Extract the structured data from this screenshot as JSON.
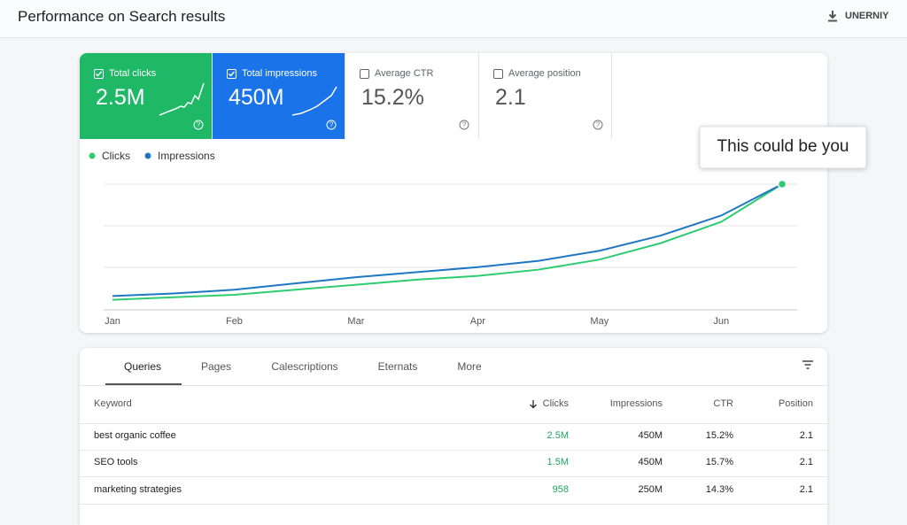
{
  "header": {
    "title": "Performance on Search results",
    "action": "UNERNIY"
  },
  "metrics": [
    {
      "label": "Total clicks",
      "value": "2.5M",
      "checked": true,
      "color": "#1fb866"
    },
    {
      "label": "Total impressions",
      "value": "450M",
      "checked": true,
      "color": "#1a73e8"
    },
    {
      "label": "Average CTR",
      "value": "15.2%",
      "checked": false
    },
    {
      "label": "Average position",
      "value": "2.1",
      "checked": false
    }
  ],
  "chart_data": {
    "type": "line",
    "categories": [
      "Jan",
      null,
      "Feb",
      null,
      "Mar",
      null,
      "Apr",
      null,
      "May",
      null,
      "Jun",
      null
    ],
    "series": [
      {
        "name": "Clicks",
        "color": "#2ecc71",
        "values": [
          8,
          10,
          12,
          16,
          20,
          24,
          27,
          32,
          40,
          53,
          70,
          100
        ]
      },
      {
        "name": "Impressions",
        "color": "#1f77c4",
        "values": [
          11,
          13,
          16,
          21,
          26,
          30,
          34,
          39,
          47,
          59,
          75,
          100
        ]
      }
    ],
    "ylim": [
      0,
      100
    ],
    "annotation": "This could be you"
  },
  "table": {
    "tabs": [
      "Queries",
      "Pages",
      "Calescriptions",
      "Eternats",
      "More"
    ],
    "columns": [
      "Keyword",
      "Clicks",
      "Impressions",
      "CTR",
      "Position"
    ],
    "rows": [
      [
        "best organic coffee",
        "2.5M",
        "450M",
        "15.2%",
        "2.1"
      ],
      [
        "SEO tools",
        "1.5M",
        "450M",
        "15.7%",
        "2.1"
      ],
      [
        "marketing strategies",
        "958",
        "250M",
        "14.3%",
        "2.1"
      ]
    ]
  }
}
